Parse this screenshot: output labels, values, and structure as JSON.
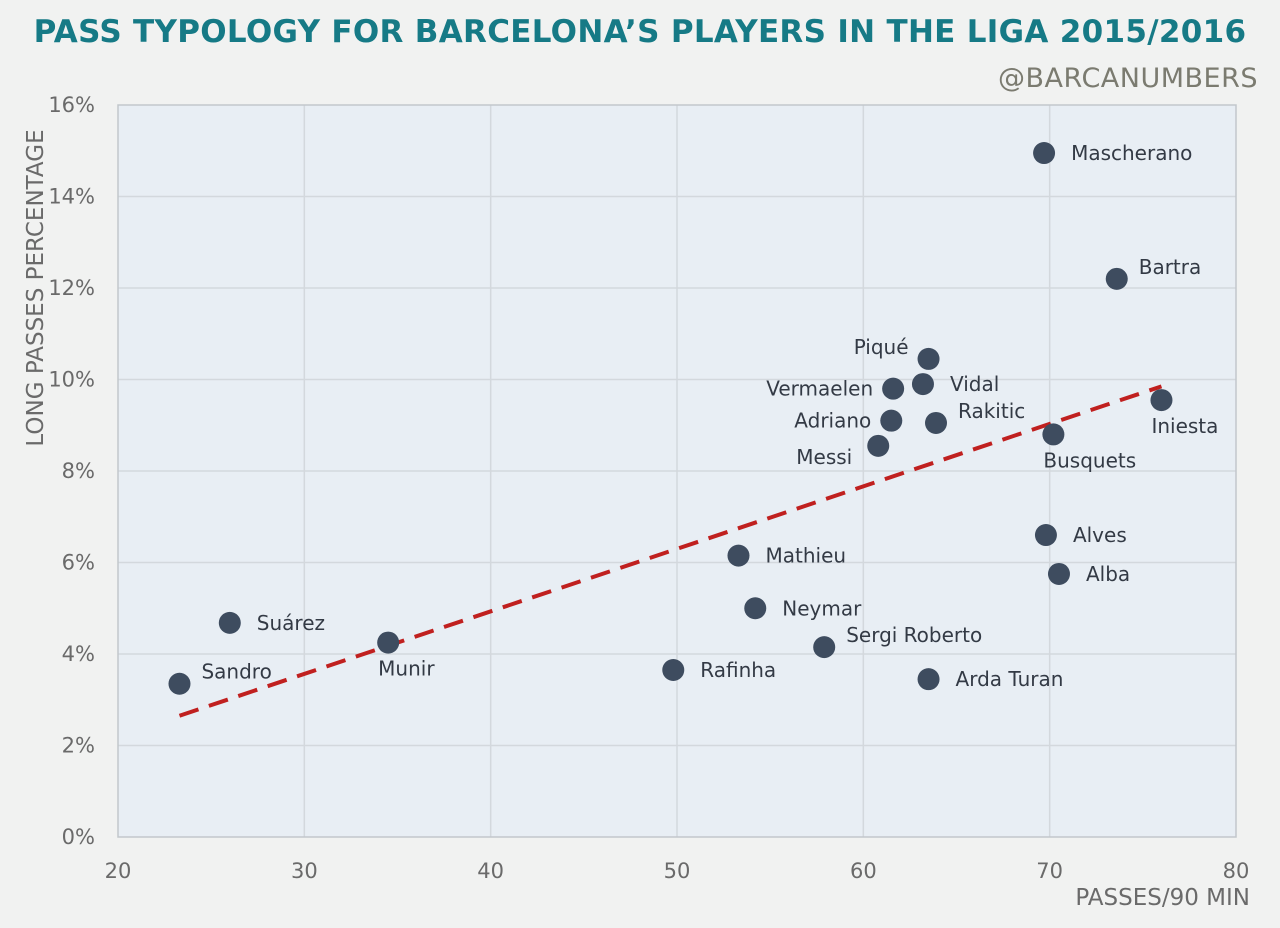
{
  "header": {
    "title": "PASS TYPOLOGY FOR BARCELONA’S PLAYERS IN THE LIGA 2015/2016",
    "handle": "@BARCANUMBERS"
  },
  "chart_data": {
    "type": "scatter",
    "title": "PASS TYPOLOGY FOR BARCELONA’S PLAYERS IN THE LIGA 2015/2016",
    "xlabel": "PASSES/90 MIN",
    "ylabel": "LONG PASSES PERCENTAGE",
    "xlim": [
      20,
      80
    ],
    "ylim": [
      0,
      16
    ],
    "x_ticks": [
      "20",
      "30",
      "40",
      "50",
      "60",
      "70",
      "80"
    ],
    "x_tick_values": [
      20,
      30,
      40,
      50,
      60,
      70,
      80
    ],
    "y_ticks": [
      "0%",
      "2%",
      "4%",
      "6%",
      "8%",
      "10%",
      "12%",
      "14%",
      "16%"
    ],
    "y_tick_values": [
      0,
      2,
      4,
      6,
      8,
      10,
      12,
      14,
      16
    ],
    "grid": true,
    "trendline": {
      "style": "dashed",
      "color": "#c0201f",
      "x": [
        23.3,
        76.0
      ],
      "y": [
        2.65,
        9.85
      ]
    },
    "point_color": "#3e4c5f",
    "points": [
      {
        "name": "Mascherano",
        "x": 69.7,
        "y": 14.95,
        "label_pos": "right"
      },
      {
        "name": "Bartra",
        "x": 73.6,
        "y": 12.2,
        "label_pos": "upper-right"
      },
      {
        "name": "Piqué",
        "x": 63.5,
        "y": 10.45,
        "label_pos": "upper-left"
      },
      {
        "name": "Vermaelen",
        "x": 61.6,
        "y": 9.8,
        "label_pos": "left"
      },
      {
        "name": "Vidal",
        "x": 63.2,
        "y": 9.9,
        "label_pos": "right"
      },
      {
        "name": "Adriano",
        "x": 61.5,
        "y": 9.1,
        "label_pos": "left"
      },
      {
        "name": "Rakitic",
        "x": 63.9,
        "y": 9.05,
        "label_pos": "upper-right"
      },
      {
        "name": "Iniesta",
        "x": 76.0,
        "y": 9.55,
        "label_pos": "below"
      },
      {
        "name": "Busquets",
        "x": 70.2,
        "y": 8.8,
        "label_pos": "below"
      },
      {
        "name": "Messi",
        "x": 60.8,
        "y": 8.55,
        "label_pos": "lower-left"
      },
      {
        "name": "Alves",
        "x": 69.8,
        "y": 6.6,
        "label_pos": "right"
      },
      {
        "name": "Alba",
        "x": 70.5,
        "y": 5.75,
        "label_pos": "right"
      },
      {
        "name": "Mathieu",
        "x": 53.3,
        "y": 6.15,
        "label_pos": "right"
      },
      {
        "name": "Neymar",
        "x": 54.2,
        "y": 5.0,
        "label_pos": "right"
      },
      {
        "name": "Sergi Roberto",
        "x": 57.9,
        "y": 4.15,
        "label_pos": "upper-right"
      },
      {
        "name": "Arda Turan",
        "x": 63.5,
        "y": 3.45,
        "label_pos": "right"
      },
      {
        "name": "Rafinha",
        "x": 49.8,
        "y": 3.65,
        "label_pos": "right"
      },
      {
        "name": "Suárez",
        "x": 26.0,
        "y": 4.68,
        "label_pos": "right"
      },
      {
        "name": "Munir",
        "x": 34.5,
        "y": 4.25,
        "label_pos": "below"
      },
      {
        "name": "Sandro",
        "x": 23.3,
        "y": 3.35,
        "label_pos": "upper-right"
      }
    ]
  }
}
